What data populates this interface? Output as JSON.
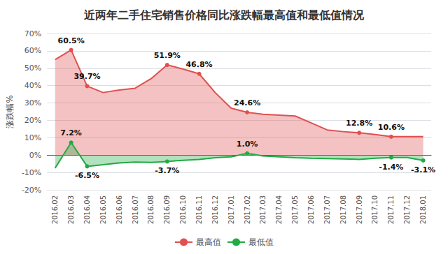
{
  "chart_data": {
    "type": "area",
    "title": "近两年二手住宅销售价格同比涨跌幅最高值和最低值情况",
    "y_label": "涨跌幅%",
    "categories": [
      "2016.02",
      "2016.03",
      "2016.04",
      "2016.05",
      "2016.06",
      "2016.07",
      "2016.08",
      "2016.09",
      "2016.10",
      "2016.11",
      "2016.12",
      "2017.01",
      "2017.02",
      "2017.03",
      "2017.04",
      "2017.05",
      "2017.06",
      "2017.07",
      "2017.08",
      "2017.09",
      "2017.10",
      "2017.11",
      "2017.12",
      "2018.01"
    ],
    "series": [
      {
        "name": "最高值",
        "color": "#e05050",
        "values": [
          55.0,
          60.5,
          39.7,
          36.0,
          37.5,
          38.5,
          44.0,
          51.9,
          49.5,
          46.8,
          36.0,
          27.0,
          24.6,
          23.5,
          23.0,
          22.5,
          18.5,
          14.5,
          13.5,
          12.8,
          11.8,
          10.6,
          10.6,
          10.6
        ],
        "value_labels": [
          null,
          "60.5%",
          "39.7%",
          null,
          null,
          null,
          null,
          "51.9%",
          null,
          "46.8%",
          null,
          null,
          "24.6%",
          null,
          null,
          null,
          null,
          null,
          null,
          "12.8%",
          null,
          "10.6%",
          null,
          null
        ]
      },
      {
        "name": "最低值",
        "color": "#22aa44",
        "values": [
          -7.5,
          7.2,
          -6.5,
          -5.5,
          -4.5,
          -4.0,
          -4.2,
          -3.7,
          -3.0,
          -2.5,
          -1.5,
          -1.0,
          1.0,
          -0.5,
          -1.0,
          -1.5,
          -1.8,
          -2.0,
          -2.2,
          -2.5,
          -1.8,
          -1.4,
          -1.4,
          -3.1
        ],
        "value_labels": [
          null,
          "7.2%",
          "-6.5%",
          null,
          null,
          null,
          null,
          "-3.7%",
          null,
          null,
          null,
          null,
          "1.0%",
          null,
          null,
          null,
          null,
          null,
          null,
          null,
          null,
          "-1.4%",
          null,
          "-3.1%"
        ]
      }
    ],
    "ylim": [
      -20,
      70
    ],
    "yticks": [
      {
        "value": -20,
        "label": "-20%"
      },
      {
        "value": -10,
        "label": "-10%"
      },
      {
        "value": 0,
        "label": "0%"
      },
      {
        "value": 10,
        "label": "10%"
      },
      {
        "value": 20,
        "label": "20%"
      },
      {
        "value": 30,
        "label": "30%"
      },
      {
        "value": 40,
        "label": "40%"
      },
      {
        "value": 50,
        "label": "50%"
      },
      {
        "value": 60,
        "label": "60%"
      },
      {
        "value": 70,
        "label": "70%"
      }
    ],
    "grid": true,
    "legend": "bottom"
  }
}
